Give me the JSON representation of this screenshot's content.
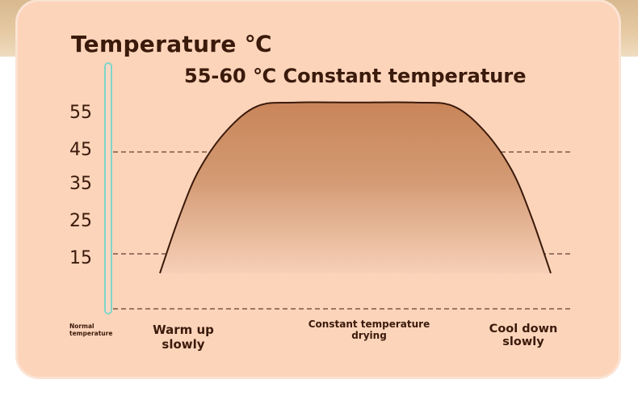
{
  "title": "Temperature ℃",
  "subtitle": "55-60 ℃ Constant temperature",
  "stages": {
    "normal": "Normal\ntemperature",
    "warm": "Warm up slowly",
    "constant": "Constant temperature\ndrying",
    "cool": "Cool down slowly"
  },
  "colors": {
    "card": "#fcd4ba",
    "curve": "#3a1a0b",
    "fill_top": "#c98559",
    "fill_bottom": "#f7d0b8",
    "thermometer": "#7fd6c8"
  },
  "chart_data": {
    "type": "area",
    "title": "Temperature ℃",
    "subtitle": "55-60 ℃ Constant temperature",
    "yticks": [
      55,
      45,
      35,
      25,
      15
    ],
    "ylim": [
      5,
      60
    ],
    "reference_lines": [
      45,
      15,
      1
    ],
    "categories": [
      "Normal temperature",
      "Warm up slowly",
      "Constant temperature drying",
      "Cool down slowly"
    ],
    "series": [
      {
        "x": [
          0.0,
          0.05,
          0.1,
          0.17,
          0.25,
          0.35,
          0.5,
          0.65,
          0.75,
          0.83,
          0.9,
          0.95,
          1.0
        ],
        "values": [
          10,
          26,
          39,
          50,
          57,
          58,
          58,
          58,
          57,
          50,
          39,
          26,
          10
        ]
      }
    ],
    "grid": false
  }
}
